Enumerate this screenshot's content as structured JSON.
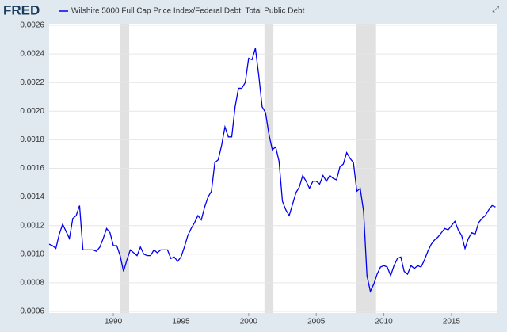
{
  "chart_data": {
    "type": "line",
    "logo": "FRED",
    "series": [
      {
        "name": "Wilshire 5000 Full Cap Price Index/Federal Debt: Total Public Debt",
        "color": "#0000ee",
        "x": [
          1985.25,
          1985.5,
          1985.75,
          1986,
          1986.25,
          1986.5,
          1986.75,
          1987,
          1987.25,
          1987.5,
          1987.75,
          1988,
          1988.25,
          1988.5,
          1988.75,
          1989,
          1989.25,
          1989.5,
          1989.75,
          1990,
          1990.25,
          1990.5,
          1990.75,
          1991,
          1991.25,
          1991.5,
          1991.75,
          1992,
          1992.25,
          1992.5,
          1992.75,
          1993,
          1993.25,
          1993.5,
          1993.75,
          1994,
          1994.25,
          1994.5,
          1994.75,
          1995,
          1995.25,
          1995.5,
          1995.75,
          1996,
          1996.25,
          1996.5,
          1996.75,
          1997,
          1997.25,
          1997.5,
          1997.75,
          1998,
          1998.25,
          1998.5,
          1998.75,
          1999,
          1999.25,
          1999.5,
          1999.75,
          2000,
          2000.25,
          2000.5,
          2000.75,
          2001,
          2001.25,
          2001.5,
          2001.75,
          2002,
          2002.25,
          2002.5,
          2002.75,
          2003,
          2003.25,
          2003.5,
          2003.75,
          2004,
          2004.25,
          2004.5,
          2004.75,
          2005,
          2005.25,
          2005.5,
          2005.75,
          2006,
          2006.25,
          2006.5,
          2006.75,
          2007,
          2007.25,
          2007.5,
          2007.75,
          2008,
          2008.25,
          2008.5,
          2008.75,
          2009,
          2009.25,
          2009.5,
          2009.75,
          2010,
          2010.25,
          2010.5,
          2010.75,
          2011,
          2011.25,
          2011.5,
          2011.75,
          2012,
          2012.25,
          2012.5,
          2012.75,
          2013,
          2013.25,
          2013.5,
          2013.75,
          2014,
          2014.25,
          2014.5,
          2014.75,
          2015,
          2015.25,
          2015.5,
          2015.75,
          2016,
          2016.25,
          2016.5,
          2016.75,
          2017,
          2017.25,
          2017.5,
          2017.75,
          2018,
          2018.25
        ],
        "values": [
          0.00107,
          0.00106,
          0.00104,
          0.00114,
          0.00121,
          0.00116,
          0.00111,
          0.00125,
          0.00127,
          0.00134,
          0.00103,
          0.00103,
          0.00103,
          0.00103,
          0.00102,
          0.00105,
          0.00111,
          0.00118,
          0.00115,
          0.00106,
          0.00106,
          0.00099,
          0.00088,
          0.00096,
          0.00103,
          0.00101,
          0.00099,
          0.00105,
          0.001,
          0.00099,
          0.00099,
          0.00103,
          0.00101,
          0.00103,
          0.00103,
          0.00103,
          0.00097,
          0.00098,
          0.00095,
          0.00098,
          0.00105,
          0.00113,
          0.00118,
          0.00122,
          0.00127,
          0.00124,
          0.00133,
          0.0014,
          0.00144,
          0.00164,
          0.00166,
          0.00176,
          0.00189,
          0.00182,
          0.00182,
          0.00203,
          0.00216,
          0.00216,
          0.0022,
          0.00237,
          0.00236,
          0.00244,
          0.00225,
          0.00203,
          0.00199,
          0.00184,
          0.00173,
          0.00175,
          0.00165,
          0.00137,
          0.00131,
          0.00127,
          0.00135,
          0.00143,
          0.00147,
          0.00155,
          0.00151,
          0.00146,
          0.00151,
          0.00151,
          0.00149,
          0.00155,
          0.00151,
          0.00155,
          0.00153,
          0.00152,
          0.00161,
          0.00163,
          0.00171,
          0.00167,
          0.00164,
          0.00144,
          0.00146,
          0.0013,
          0.00085,
          0.00074,
          0.00079,
          0.00086,
          0.00091,
          0.00092,
          0.00091,
          0.00085,
          0.00092,
          0.00097,
          0.00098,
          0.00088,
          0.00086,
          0.00092,
          0.0009,
          0.00092,
          0.00091,
          0.00096,
          0.00102,
          0.00107,
          0.0011,
          0.00112,
          0.00115,
          0.00118,
          0.00117,
          0.0012,
          0.00123,
          0.00117,
          0.00113,
          0.00104,
          0.00111,
          0.00115,
          0.00114,
          0.00122,
          0.00125,
          0.00127,
          0.00131,
          0.00134,
          0.00133
        ]
      }
    ],
    "recessions": [
      [
        1990.5,
        1991.17
      ],
      [
        2001.17,
        2001.83
      ],
      [
        2007.92,
        2009.42
      ]
    ],
    "xlim": [
      1985.25,
      2018.4
    ],
    "xticks": [
      1990,
      1995,
      2000,
      2005,
      2010,
      2015
    ],
    "ylim": [
      0.0006,
      0.0026
    ],
    "yticks": [
      0.0006,
      0.0008,
      {
        "value": 0.001,
        "label": "0.0010"
      },
      0.0012,
      0.0014,
      0.0016,
      0.0018,
      {
        "value": 0.002,
        "label": "0.0020"
      },
      0.0022,
      0.0024,
      0.0026
    ],
    "grid": true
  }
}
